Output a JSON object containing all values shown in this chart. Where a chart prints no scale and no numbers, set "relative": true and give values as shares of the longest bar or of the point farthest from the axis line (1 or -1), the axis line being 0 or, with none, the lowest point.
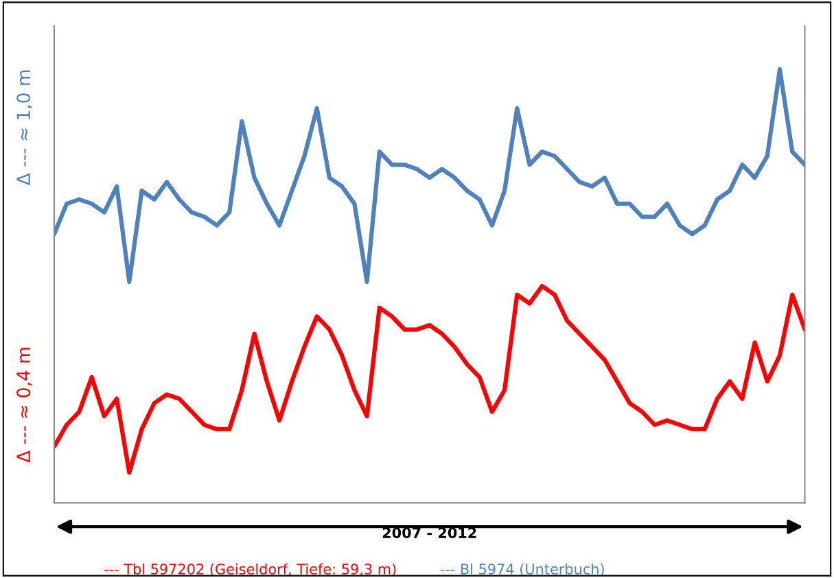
{
  "chart_data": {
    "type": "line",
    "relative": true,
    "xlabel": "2007 - 2012",
    "annotations": [
      "Δ --- ≈ 1,0 m",
      "Δ --- ≈ 0,4 m"
    ],
    "categories": [
      null,
      null,
      null,
      null,
      null,
      null,
      null,
      null,
      null,
      null,
      null,
      null,
      null,
      null,
      null,
      null,
      null,
      null,
      null,
      null,
      null,
      null,
      null,
      null,
      null,
      null,
      null,
      null,
      null,
      null,
      null,
      null,
      null,
      null,
      null,
      null,
      null,
      null,
      null,
      null,
      null,
      null,
      null,
      null,
      null,
      null,
      null,
      null,
      null,
      null,
      null,
      null,
      null,
      null,
      null,
      null,
      null,
      null,
      null,
      null,
      null
    ],
    "series": [
      {
        "name": "--- Tbl 597202 (Geiseldorf, Tiefe: 59,3 m)",
        "color": "#ff0000",
        "values": [
          0.13,
          0.18,
          0.21,
          0.29,
          0.2,
          0.24,
          0.07,
          0.17,
          0.23,
          0.25,
          0.24,
          0.21,
          0.18,
          0.17,
          0.17,
          0.26,
          0.39,
          0.28,
          0.19,
          0.28,
          0.36,
          0.43,
          0.4,
          0.34,
          0.26,
          0.2,
          0.45,
          0.43,
          0.4,
          0.4,
          0.41,
          0.39,
          0.36,
          0.32,
          0.29,
          0.21,
          0.26,
          0.48,
          0.46,
          0.5,
          0.48,
          0.42,
          0.39,
          0.36,
          0.33,
          0.28,
          0.23,
          0.21,
          0.18,
          0.19,
          0.18,
          0.17,
          0.17,
          0.24,
          0.28,
          0.24,
          0.37,
          0.28,
          0.34,
          0.48,
          0.4
        ]
      },
      {
        "name": "--- Bl 5974 (Unterbuch)",
        "color": "#4f81bd",
        "values": [
          0.62,
          0.69,
          0.7,
          0.69,
          0.67,
          0.73,
          0.51,
          0.72,
          0.7,
          0.74,
          0.7,
          0.67,
          0.66,
          0.64,
          0.67,
          0.88,
          0.75,
          0.69,
          0.64,
          0.72,
          0.8,
          0.91,
          0.75,
          0.73,
          0.69,
          0.51,
          0.81,
          0.78,
          0.78,
          0.77,
          0.75,
          0.77,
          0.75,
          0.72,
          0.7,
          0.64,
          0.72,
          0.91,
          0.78,
          0.81,
          0.8,
          0.77,
          0.74,
          0.73,
          0.75,
          0.69,
          0.69,
          0.66,
          0.66,
          0.69,
          0.64,
          0.62,
          0.64,
          0.7,
          0.72,
          0.78,
          0.75,
          0.8,
          1,
          0.81,
          0.78
        ]
      }
    ],
    "legend": "bottom",
    "grid": false
  }
}
